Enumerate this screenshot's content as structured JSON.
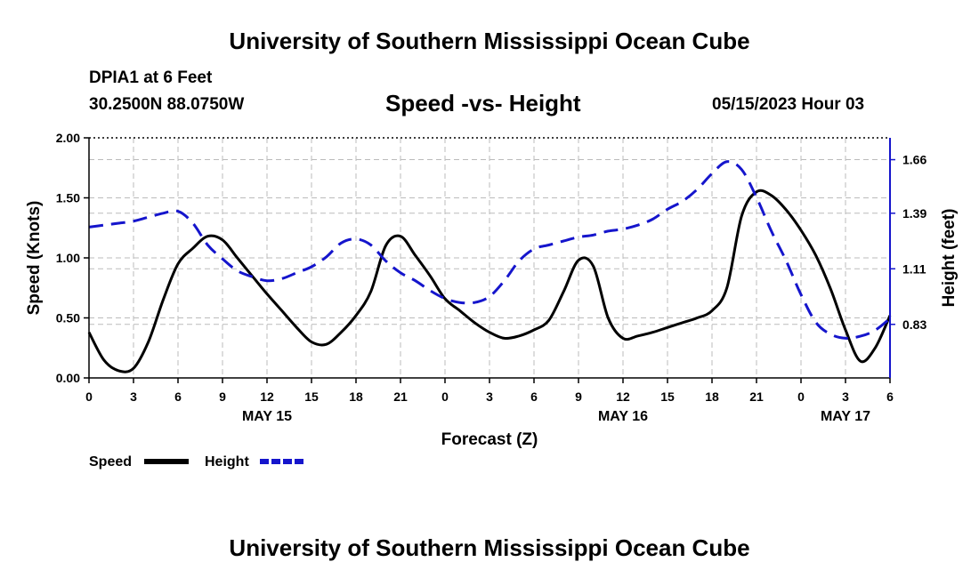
{
  "header": {
    "title": "University of Southern Mississippi Ocean Cube",
    "station": "DPIA1 at 6 Feet",
    "coords": "30.2500N  88.0750W",
    "plot_title": "Speed -vs- Height",
    "datetime": "05/15/2023 Hour 03"
  },
  "footer": {
    "title": "University of Southern Mississippi Ocean Cube"
  },
  "chart_data": {
    "type": "line",
    "title": "Speed -vs- Height",
    "xlabel": "Forecast (Z)",
    "ylabel": "Speed (Knots)",
    "y2label": "Height (feet)",
    "x_range": [
      0,
      54
    ],
    "x_ticks": [
      0,
      3,
      6,
      9,
      12,
      15,
      18,
      21,
      24,
      27,
      30,
      33,
      36,
      39,
      42,
      45,
      48,
      51,
      54
    ],
    "x_tick_labels": [
      "0",
      "3",
      "6",
      "9",
      "12",
      "15",
      "18",
      "21",
      "0",
      "3",
      "6",
      "9",
      "12",
      "15",
      "18",
      "21",
      "0",
      "3",
      "6"
    ],
    "date_labels": [
      {
        "x": 12,
        "label": "MAY 15"
      },
      {
        "x": 36,
        "label": "MAY 16"
      },
      {
        "x": 51,
        "label": "MAY 17"
      }
    ],
    "ylim": [
      0,
      2
    ],
    "y_ticks": [
      0,
      0.5,
      1,
      1.5,
      2
    ],
    "y_tick_labels": [
      "0.00",
      "0.50",
      "1.00",
      "1.50",
      "2.00"
    ],
    "y2lim": [
      0.56,
      1.77
    ],
    "y2_ticks": [
      0.83,
      1.11,
      1.39,
      1.66
    ],
    "y2_tick_labels": [
      "0.83",
      "1.11",
      "1.39",
      "1.66"
    ],
    "grid": true,
    "legend": [
      {
        "name": "Speed",
        "color": "#000000",
        "dash": false
      },
      {
        "name": "Height",
        "color": "#1515cc",
        "dash": true
      }
    ],
    "series": [
      {
        "name": "Speed",
        "axis": "left",
        "color": "#000000",
        "x": [
          0,
          1,
          2,
          3,
          4,
          5,
          6,
          7,
          8,
          9,
          10,
          11,
          12,
          13,
          14,
          15,
          16,
          17,
          18,
          19,
          20,
          21,
          22,
          23,
          24,
          25,
          26,
          27,
          28,
          29,
          30,
          31,
          32,
          33,
          34,
          35,
          36,
          37,
          38,
          39,
          40,
          41,
          42,
          43,
          44,
          45,
          46,
          47,
          48,
          49,
          50,
          51,
          52,
          53,
          54
        ],
        "values": [
          0.38,
          0.15,
          0.06,
          0.08,
          0.3,
          0.65,
          0.95,
          1.08,
          1.18,
          1.15,
          1.0,
          0.85,
          0.7,
          0.56,
          0.42,
          0.3,
          0.28,
          0.38,
          0.52,
          0.72,
          1.1,
          1.18,
          1.02,
          0.85,
          0.66,
          0.56,
          0.46,
          0.38,
          0.33,
          0.35,
          0.4,
          0.48,
          0.72,
          0.98,
          0.93,
          0.5,
          0.33,
          0.35,
          0.38,
          0.42,
          0.46,
          0.5,
          0.56,
          0.75,
          1.35,
          1.55,
          1.52,
          1.4,
          1.23,
          1.02,
          0.74,
          0.4,
          0.14,
          0.25,
          0.52
        ]
      },
      {
        "name": "Height",
        "axis": "right",
        "color": "#1515cc",
        "x": [
          0,
          1,
          2,
          3,
          4,
          5,
          6,
          7,
          8,
          9,
          10,
          11,
          12,
          13,
          14,
          15,
          16,
          17,
          18,
          19,
          20,
          21,
          22,
          23,
          24,
          25,
          26,
          27,
          28,
          29,
          30,
          31,
          32,
          33,
          34,
          35,
          36,
          37,
          38,
          39,
          40,
          41,
          42,
          43,
          44,
          45,
          46,
          47,
          48,
          49,
          50,
          51,
          52,
          53,
          54
        ],
        "values": [
          1.32,
          1.33,
          1.34,
          1.35,
          1.37,
          1.39,
          1.4,
          1.34,
          1.23,
          1.16,
          1.1,
          1.07,
          1.05,
          1.06,
          1.09,
          1.12,
          1.17,
          1.24,
          1.26,
          1.23,
          1.15,
          1.09,
          1.05,
          1.0,
          0.96,
          0.94,
          0.94,
          0.97,
          1.05,
          1.15,
          1.21,
          1.23,
          1.25,
          1.27,
          1.28,
          1.3,
          1.31,
          1.33,
          1.36,
          1.41,
          1.45,
          1.51,
          1.59,
          1.65,
          1.61,
          1.47,
          1.3,
          1.15,
          0.98,
          0.84,
          0.78,
          0.76,
          0.77,
          0.8,
          0.86
        ]
      }
    ]
  }
}
